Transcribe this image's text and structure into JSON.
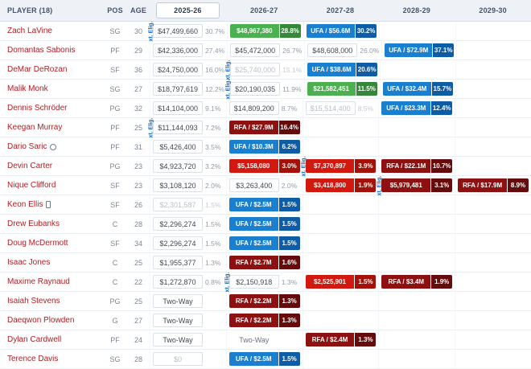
{
  "colors": {
    "player_option_green": "#4caf50",
    "ufa_blue": "#1b7fd0",
    "team_option_red": "#d2190f",
    "rfa_dark_red": "#8e1111",
    "player_link_red": "#b01e23",
    "header_bg": "#eef2f7"
  },
  "table": {
    "ext_label": "xt. Elig.",
    "columns": [
      {
        "label": "PLAYER (18)",
        "type": "player"
      },
      {
        "label": "POS",
        "type": "plain"
      },
      {
        "label": "AGE",
        "type": "plain"
      },
      {
        "label": "2025-26",
        "type": "year",
        "active": true
      },
      {
        "label": "2026-27",
        "type": "year"
      },
      {
        "label": "2027-28",
        "type": "year"
      },
      {
        "label": "2028-29",
        "type": "year"
      },
      {
        "label": "2029-30",
        "type": "year"
      }
    ],
    "rows": [
      {
        "player": "Zach LaVine",
        "pos": "SG",
        "age": "30",
        "years": [
          {
            "type": "money",
            "value": "$47,499,660",
            "pct": "30.7%",
            "ext": true
          },
          {
            "type": "green",
            "value": "$48,967,380",
            "pct": "28.8%"
          },
          {
            "type": "blue",
            "value": "UFA / $56.6M",
            "pct": "30.2%"
          },
          null,
          null
        ]
      },
      {
        "player": "Domantas Sabonis",
        "pos": "PF",
        "age": "29",
        "years": [
          {
            "type": "money",
            "value": "$42,336,000",
            "pct": "27.4%"
          },
          {
            "type": "money",
            "value": "$45,472,000",
            "pct": "26.7%"
          },
          {
            "type": "money",
            "value": "$48,608,000",
            "pct": "26.0%"
          },
          {
            "type": "blue",
            "value": "UFA / $72.9M",
            "pct": "37.1%"
          },
          null
        ]
      },
      {
        "player": "DeMar DeRozan",
        "pos": "SF",
        "age": "36",
        "years": [
          {
            "type": "money",
            "value": "$24,750,000",
            "pct": "16.0%"
          },
          {
            "type": "gray",
            "value": "$25,740,000",
            "pct": "15.1%",
            "ext": true
          },
          {
            "type": "blue",
            "value": "UFA / $38.6M",
            "pct": "20.6%"
          },
          null,
          null
        ]
      },
      {
        "player": "Malik Monk",
        "pos": "SG",
        "age": "27",
        "years": [
          {
            "type": "money",
            "value": "$18,797,619",
            "pct": "12.2%"
          },
          {
            "type": "money",
            "value": "$20,190,035",
            "pct": "11.9%",
            "ext": true
          },
          {
            "type": "green",
            "value": "$21,582,451",
            "pct": "11.5%"
          },
          {
            "type": "blue",
            "value": "UFA / $32.4M",
            "pct": "15.7%"
          },
          null
        ]
      },
      {
        "player": "Dennis Schröder",
        "pos": "PG",
        "age": "32",
        "years": [
          {
            "type": "money",
            "value": "$14,104,000",
            "pct": "9.1%"
          },
          {
            "type": "money",
            "value": "$14,809,200",
            "pct": "8.7%"
          },
          {
            "type": "gray",
            "value": "$15,514,400",
            "pct": "8.5%"
          },
          {
            "type": "blue",
            "value": "UFA / $23.3M",
            "pct": "12.4%"
          },
          null
        ]
      },
      {
        "player": "Keegan Murray",
        "pos": "PF",
        "age": "25",
        "years": [
          {
            "type": "money",
            "value": "$11,144,093",
            "pct": "7.2%",
            "ext": true
          },
          {
            "type": "darkred",
            "value": "RFA / $27.9M",
            "pct": "16.4%"
          },
          null,
          null,
          null
        ]
      },
      {
        "player": "Dario Saric",
        "pos": "PF",
        "age": "31",
        "icon": "circle",
        "years": [
          {
            "type": "money",
            "value": "$5,426,400",
            "pct": "3.5%"
          },
          {
            "type": "blue",
            "value": "UFA / $10.3M",
            "pct": "6.2%"
          },
          null,
          null,
          null
        ]
      },
      {
        "player": "Devin Carter",
        "pos": "PG",
        "age": "23",
        "years": [
          {
            "type": "money",
            "value": "$4,923,720",
            "pct": "3.2%"
          },
          {
            "type": "red",
            "value": "$5,158,080",
            "pct": "3.0%"
          },
          {
            "type": "red",
            "value": "$7,370,897",
            "pct": "3.9%",
            "ext": true
          },
          {
            "type": "darkred",
            "value": "RFA / $22.1M",
            "pct": "10.7%"
          },
          null
        ]
      },
      {
        "player": "Nique Clifford",
        "pos": "SF",
        "age": "23",
        "years": [
          {
            "type": "money",
            "value": "$3,108,120",
            "pct": "2.0%"
          },
          {
            "type": "money",
            "value": "$3,263,400",
            "pct": "2.0%"
          },
          {
            "type": "red",
            "value": "$3,418,800",
            "pct": "1.9%"
          },
          {
            "type": "darkred",
            "value": "$5,979,481",
            "pct": "3.1%",
            "ext": true
          },
          {
            "type": "darkred",
            "value": "RFA / $17.9M",
            "pct": "8.9%"
          }
        ]
      },
      {
        "player": "Keon Ellis",
        "pos": "SF",
        "age": "26",
        "icon": "card",
        "years": [
          {
            "type": "gray",
            "value": "$2,301,587",
            "pct": "1.5%"
          },
          {
            "type": "blue",
            "value": "UFA / $2.5M",
            "pct": "1.5%"
          },
          null,
          null,
          null
        ]
      },
      {
        "player": "Drew Eubanks",
        "pos": "C",
        "age": "28",
        "years": [
          {
            "type": "money",
            "value": "$2,296,274",
            "pct": "1.5%"
          },
          {
            "type": "blue",
            "value": "UFA / $2.5M",
            "pct": "1.5%"
          },
          null,
          null,
          null
        ]
      },
      {
        "player": "Doug McDermott",
        "pos": "SF",
        "age": "34",
        "years": [
          {
            "type": "money",
            "value": "$2,296,274",
            "pct": "1.5%"
          },
          {
            "type": "blue",
            "value": "UFA / $2.5M",
            "pct": "1.5%"
          },
          null,
          null,
          null
        ]
      },
      {
        "player": "Isaac Jones",
        "pos": "C",
        "age": "25",
        "years": [
          {
            "type": "money",
            "value": "$1,955,377",
            "pct": "1.3%"
          },
          {
            "type": "darkred",
            "value": "RFA / $2.7M",
            "pct": "1.6%"
          },
          null,
          null,
          null
        ]
      },
      {
        "player": "Maxime Raynaud",
        "pos": "C",
        "age": "22",
        "years": [
          {
            "type": "money",
            "value": "$1,272,870",
            "pct": "0.8%"
          },
          {
            "type": "money",
            "value": "$2,150,918",
            "pct": "1.3%",
            "ext": true
          },
          {
            "type": "red",
            "value": "$2,525,901",
            "pct": "1.5%"
          },
          {
            "type": "darkred",
            "value": "RFA / $3.4M",
            "pct": "1.9%"
          },
          null
        ]
      },
      {
        "player": "Isaiah Stevens",
        "pos": "PG",
        "age": "25",
        "years": [
          {
            "type": "twoway",
            "value": "Two-Way",
            "pct": ""
          },
          {
            "type": "darkred",
            "value": "RFA / $2.2M",
            "pct": "1.3%"
          },
          null,
          null,
          null
        ]
      },
      {
        "player": "Daeqwon Plowden",
        "pos": "G",
        "age": "27",
        "years": [
          {
            "type": "twoway",
            "value": "Two-Way",
            "pct": ""
          },
          {
            "type": "darkred",
            "value": "RFA / $2.2M",
            "pct": "1.3%"
          },
          null,
          null,
          null
        ]
      },
      {
        "player": "Dylan Cardwell",
        "pos": "PF",
        "age": "24",
        "years": [
          {
            "type": "twoway",
            "value": "Two-Way",
            "pct": ""
          },
          {
            "type": "twoway-plain",
            "value": "Two-Way",
            "pct": ""
          },
          {
            "type": "darkred",
            "value": "RFA / $2.4M",
            "pct": "1.3%"
          },
          null,
          null
        ]
      },
      {
        "player": "Terence Davis",
        "pos": "SG",
        "age": "28",
        "years": [
          {
            "type": "gray",
            "value": "$0",
            "pct": ""
          },
          {
            "type": "blue",
            "value": "UFA / $2.5M",
            "pct": "1.5%"
          },
          null,
          null,
          null
        ]
      }
    ]
  }
}
